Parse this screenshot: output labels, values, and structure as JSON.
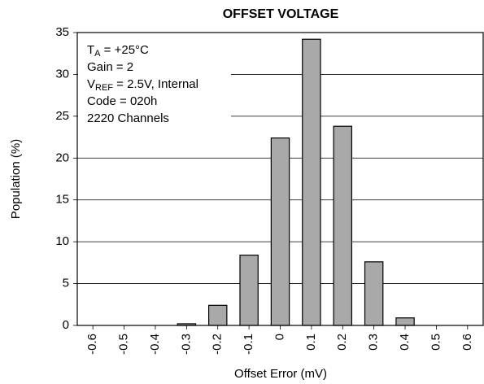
{
  "chart_data": {
    "type": "bar",
    "title": "OFFSET VOLTAGE",
    "x_label": "Offset Error (mV)",
    "y_label": "Population (%)",
    "categories": [
      "-0.6",
      "-0.5",
      "-0.4",
      "-0.3",
      "-0.2",
      "-0.1",
      "0",
      "0.1",
      "0.2",
      "0.3",
      "0.4",
      "0.5",
      "0.6"
    ],
    "values": [
      0,
      0,
      0,
      0.2,
      2.4,
      8.4,
      22.4,
      34.2,
      23.8,
      7.6,
      0.9,
      0,
      0
    ],
    "color": "#a9a9a9",
    "ylim": [
      0,
      35
    ],
    "yticks": [
      0,
      5,
      10,
      15,
      20,
      25,
      30,
      35
    ],
    "grid": true,
    "annotations": [
      [
        "T",
        "A",
        " = +25°C"
      ],
      [
        "Gain = 2"
      ],
      [
        "V",
        "REF",
        " = 2.5V, Internal"
      ],
      [
        "Code = 020h"
      ],
      [
        "2220 Channels"
      ]
    ]
  }
}
